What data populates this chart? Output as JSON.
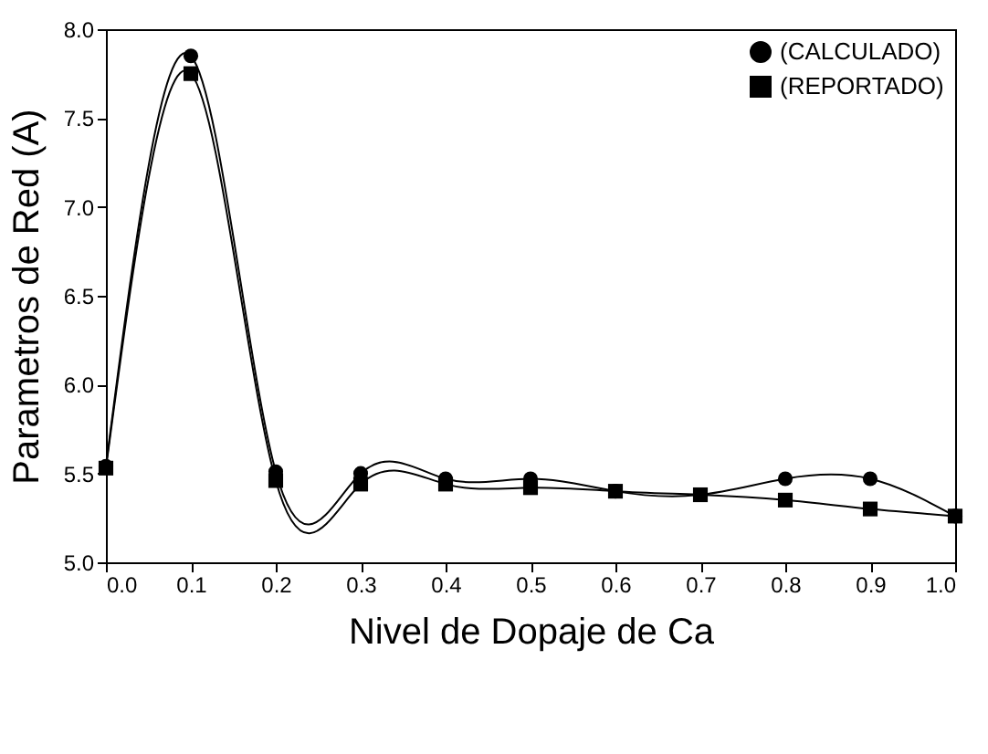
{
  "chart_data": {
    "type": "line",
    "xlabel": "Nivel de Dopaje de Ca",
    "ylabel": "Parametros de Red (A)",
    "x": [
      0,
      0.1,
      0.2,
      0.3,
      0.4,
      0.5,
      0.6,
      0.7,
      0.8,
      0.9,
      1.0
    ],
    "series": [
      {
        "name": "(CALCULADO)",
        "color": "#000000",
        "marker": "circle",
        "values": [
          5.54,
          7.85,
          5.51,
          5.5,
          5.47,
          5.47,
          5.4,
          5.38,
          5.47,
          5.47,
          5.26
        ]
      },
      {
        "name": "(REPORTADO)",
        "color": "#000000",
        "marker": "square",
        "values": [
          5.53,
          7.75,
          5.46,
          5.44,
          5.44,
          5.42,
          5.4,
          5.38,
          5.35,
          5.3,
          5.26
        ]
      }
    ],
    "xlim": [
      0,
      1.0
    ],
    "xticks": [
      {
        "value": 0,
        "label": "0.0"
      },
      0.1,
      0.2,
      0.3,
      0.4,
      0.5,
      0.6,
      0.7,
      0.8,
      0.9,
      {
        "value": 1.0,
        "label": "1.0"
      }
    ],
    "ylim": [
      5.0,
      8.0
    ],
    "yticks": [
      {
        "value": 5.0,
        "label": "5.0"
      },
      5.5,
      {
        "value": 6.0,
        "label": "6.0"
      },
      6.5,
      {
        "value": 7.0,
        "label": "7.0"
      },
      7.5,
      {
        "value": 8.0,
        "label": "8.0"
      }
    ],
    "grid": false,
    "legend": "top right",
    "line_style": "solid"
  }
}
